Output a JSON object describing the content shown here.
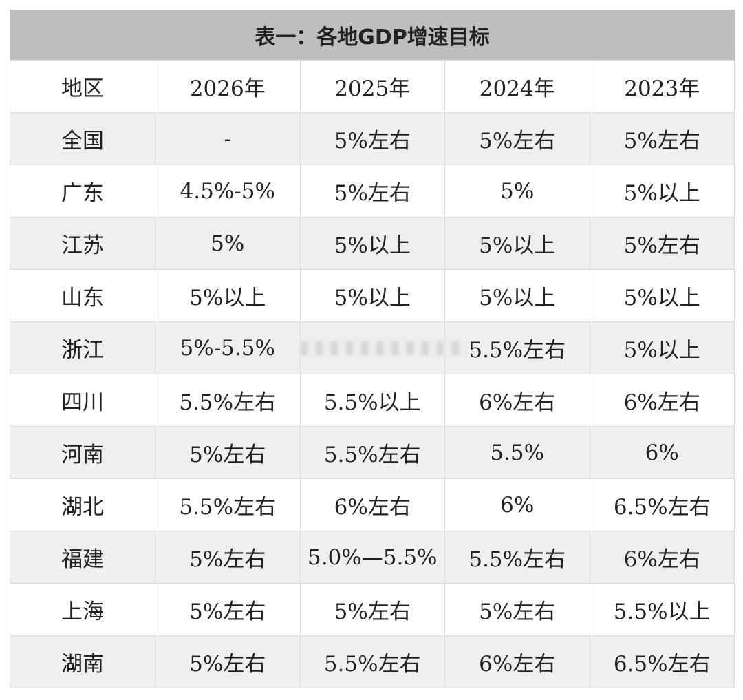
{
  "title": "表一：各地GDP增速目标",
  "columns": [
    "地区",
    "2026年",
    "2025年",
    "2024年",
    "2023年"
  ],
  "rows": [
    [
      "全国",
      "-",
      "5%左右",
      "5%左右",
      "5%左右"
    ],
    [
      "广东",
      "4.5%-5%",
      "5%左右",
      "5%",
      "5%以上"
    ],
    [
      "江苏",
      "5%",
      "5%以上",
      "5%以上",
      "5%左右"
    ],
    [
      "山东",
      "5%以上",
      "5%以上",
      "5%以上",
      "5%以上"
    ],
    [
      "浙江",
      "5%-5.5%",
      "",
      "5.5%左右",
      "5%以上"
    ],
    [
      "四川",
      "5.5%左右",
      "5.5%以上",
      "6%左右",
      "6%左右"
    ],
    [
      "河南",
      "5%左右",
      "5.5%左右",
      "5.5%",
      "6%"
    ],
    [
      "湖北",
      "5.5%左右",
      "6%左右",
      "6%",
      "6.5%左右"
    ],
    [
      "福建",
      "5%左右",
      "5.0%—5.5%",
      "5.5%左右",
      "6%左右"
    ],
    [
      "上海",
      "5%左右",
      "5%左右",
      "5%左右",
      "5.5%以上"
    ],
    [
      "湖南",
      "5%左右",
      "5.5%左右",
      "6%左右",
      "6.5%左右"
    ]
  ]
}
